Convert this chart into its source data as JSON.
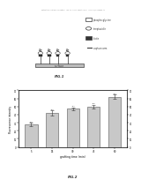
{
  "fig1_title": "FIG.1",
  "fig2_title": "FIG.2",
  "legend_items": [
    "phospho-glycine",
    "streptavidin",
    "biotin",
    "capture arm"
  ],
  "bar_categories": [
    "5",
    "15",
    "30",
    "45",
    "60"
  ],
  "bar_values": [
    28,
    42,
    47,
    50,
    62
  ],
  "bar_errors": [
    2,
    3,
    2,
    2,
    3
  ],
  "bar_annotations": [
    "~30",
    "~43",
    "~47",
    "~50",
    "~63"
  ],
  "xlabel": "grafting time (min)",
  "ylabel": "Fluorescence intensity",
  "bar_color": "#c8c8c8",
  "bar_edge_color": "#555555",
  "ylim": [
    0,
    70
  ],
  "yticks": [
    0,
    10,
    20,
    30,
    40,
    50,
    60,
    70
  ],
  "background_color": "#ffffff",
  "header_text": "Patent Application Publication    Jun. 12, 2012  Sheet 1 of 9    US 2012/0148568 A1"
}
